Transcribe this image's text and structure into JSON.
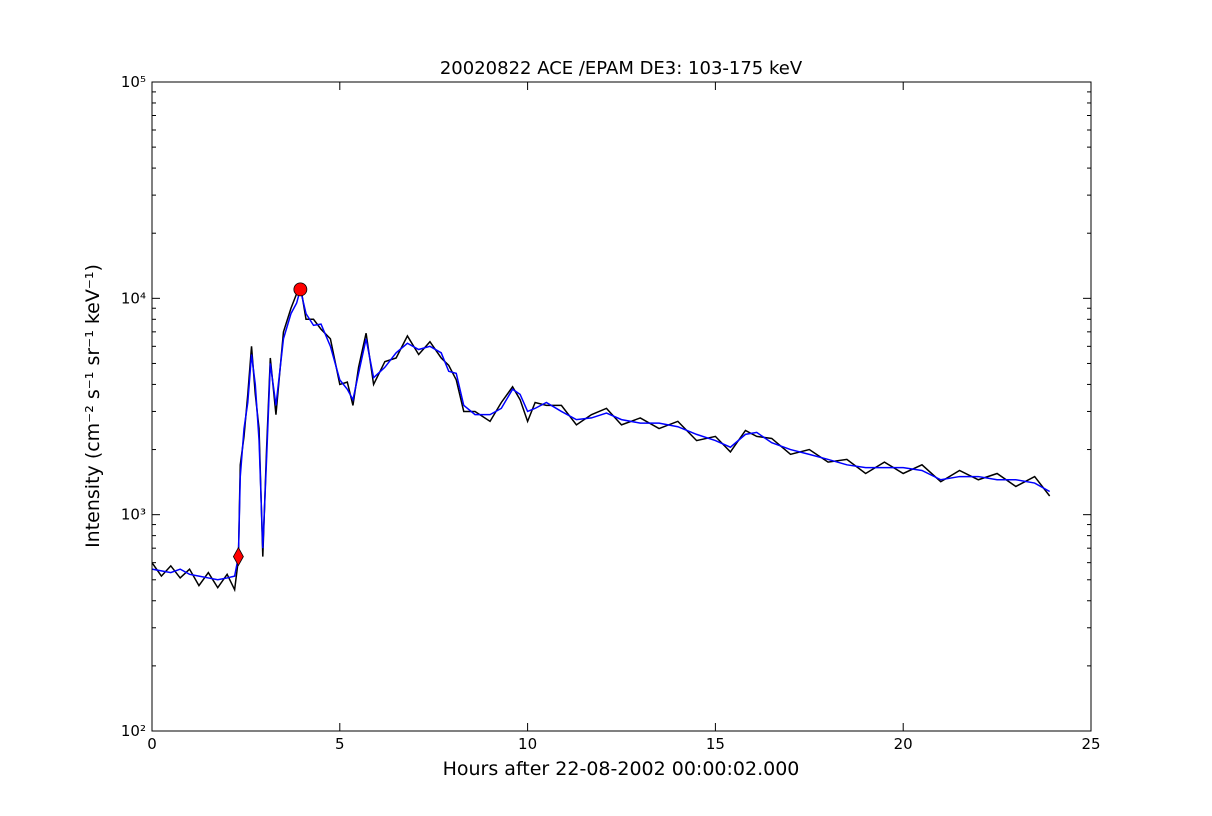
{
  "chart_data": {
    "type": "line",
    "title": "20020822 ACE /EPAM DE3: 103-175 keV",
    "xlabel": "Hours after 22-08-2002 00:00:02.000",
    "ylabel": "Intensity (cm⁻² s⁻¹ sr⁻¹ keV⁻¹)",
    "x": [
      0,
      0.25,
      0.5,
      0.75,
      1,
      1.25,
      1.5,
      1.75,
      2,
      2.2,
      2.3,
      2.35,
      2.45,
      2.55,
      2.65,
      2.75,
      2.85,
      2.95,
      3.05,
      3.15,
      3.3,
      3.5,
      3.7,
      3.85,
      3.95,
      4.1,
      4.3,
      4.5,
      4.75,
      5,
      5.2,
      5.35,
      5.5,
      5.7,
      5.9,
      6.2,
      6.5,
      6.8,
      7.1,
      7.4,
      7.7,
      7.9,
      8.1,
      8.3,
      8.6,
      9,
      9.3,
      9.6,
      9.8,
      10,
      10.2,
      10.5,
      10.9,
      11.3,
      11.7,
      12.1,
      12.5,
      13,
      13.5,
      14,
      14.5,
      15,
      15.4,
      15.8,
      16.1,
      16.5,
      17,
      17.5,
      18,
      18.5,
      19,
      19.5,
      20,
      20.5,
      21,
      21.5,
      22,
      22.5,
      23,
      23.5,
      23.9
    ],
    "series": [
      {
        "color": "#000000",
        "values": [
          600,
          520,
          580,
          510,
          560,
          470,
          540,
          460,
          530,
          450,
          620,
          1700,
          2300,
          3600,
          6000,
          3600,
          2500,
          640,
          2000,
          5300,
          2900,
          7000,
          9000,
          10500,
          11500,
          8000,
          8000,
          7200,
          6500,
          4000,
          4100,
          3200,
          4800,
          6900,
          4000,
          5100,
          5300,
          6700,
          5500,
          6300,
          5300,
          4900,
          4200,
          3000,
          3000,
          2700,
          3300,
          3900,
          3400,
          2700,
          3300,
          3200,
          3200,
          2600,
          2900,
          3100,
          2600,
          2800,
          2500,
          2700,
          2200,
          2300,
          1950,
          2450,
          2300,
          2250,
          1900,
          2000,
          1750,
          1800,
          1550,
          1750,
          1550,
          1700,
          1420,
          1600,
          1450,
          1550,
          1350,
          1500,
          1220
        ]
      },
      {
        "color": "#0000ff",
        "values": [
          560,
          550,
          540,
          560,
          530,
          520,
          510,
          500,
          510,
          520,
          640,
          1500,
          2500,
          3300,
          5500,
          4000,
          2200,
          700,
          1800,
          5000,
          3200,
          6500,
          8500,
          9500,
          11000,
          8500,
          7500,
          7600,
          6000,
          4200,
          3800,
          3400,
          4500,
          6500,
          4300,
          4800,
          5600,
          6200,
          5800,
          6000,
          5600,
          4600,
          4500,
          3200,
          2900,
          2900,
          3100,
          3800,
          3600,
          3000,
          3100,
          3300,
          3000,
          2750,
          2800,
          2950,
          2750,
          2650,
          2650,
          2550,
          2350,
          2200,
          2050,
          2350,
          2400,
          2150,
          2000,
          1900,
          1800,
          1700,
          1650,
          1650,
          1650,
          1600,
          1450,
          1500,
          1500,
          1450,
          1450,
          1400,
          1280
        ]
      },
      {
        "color": "#ff0000",
        "marker": "diamond",
        "x": [
          2.3
        ],
        "values": [
          640
        ]
      },
      {
        "color": "#ff0000",
        "marker": "circle",
        "x": [
          3.95
        ],
        "values": [
          11000
        ]
      }
    ],
    "xlim": [
      0,
      25
    ],
    "xticks": [
      0,
      5,
      10,
      15,
      20,
      25
    ],
    "ylim": [
      100,
      100000
    ],
    "log_y": true,
    "yticks": [
      {
        "value": 100,
        "label": "10²"
      },
      {
        "value": 1000,
        "label": "10³"
      },
      {
        "value": 10000,
        "label": "10⁴"
      },
      {
        "value": 100000,
        "label": "10⁵"
      }
    ],
    "yminorticks": [
      200,
      300,
      400,
      500,
      600,
      700,
      800,
      900,
      2000,
      3000,
      4000,
      5000,
      6000,
      7000,
      8000,
      9000,
      20000,
      30000,
      40000,
      50000,
      60000,
      70000,
      80000,
      90000
    ]
  }
}
